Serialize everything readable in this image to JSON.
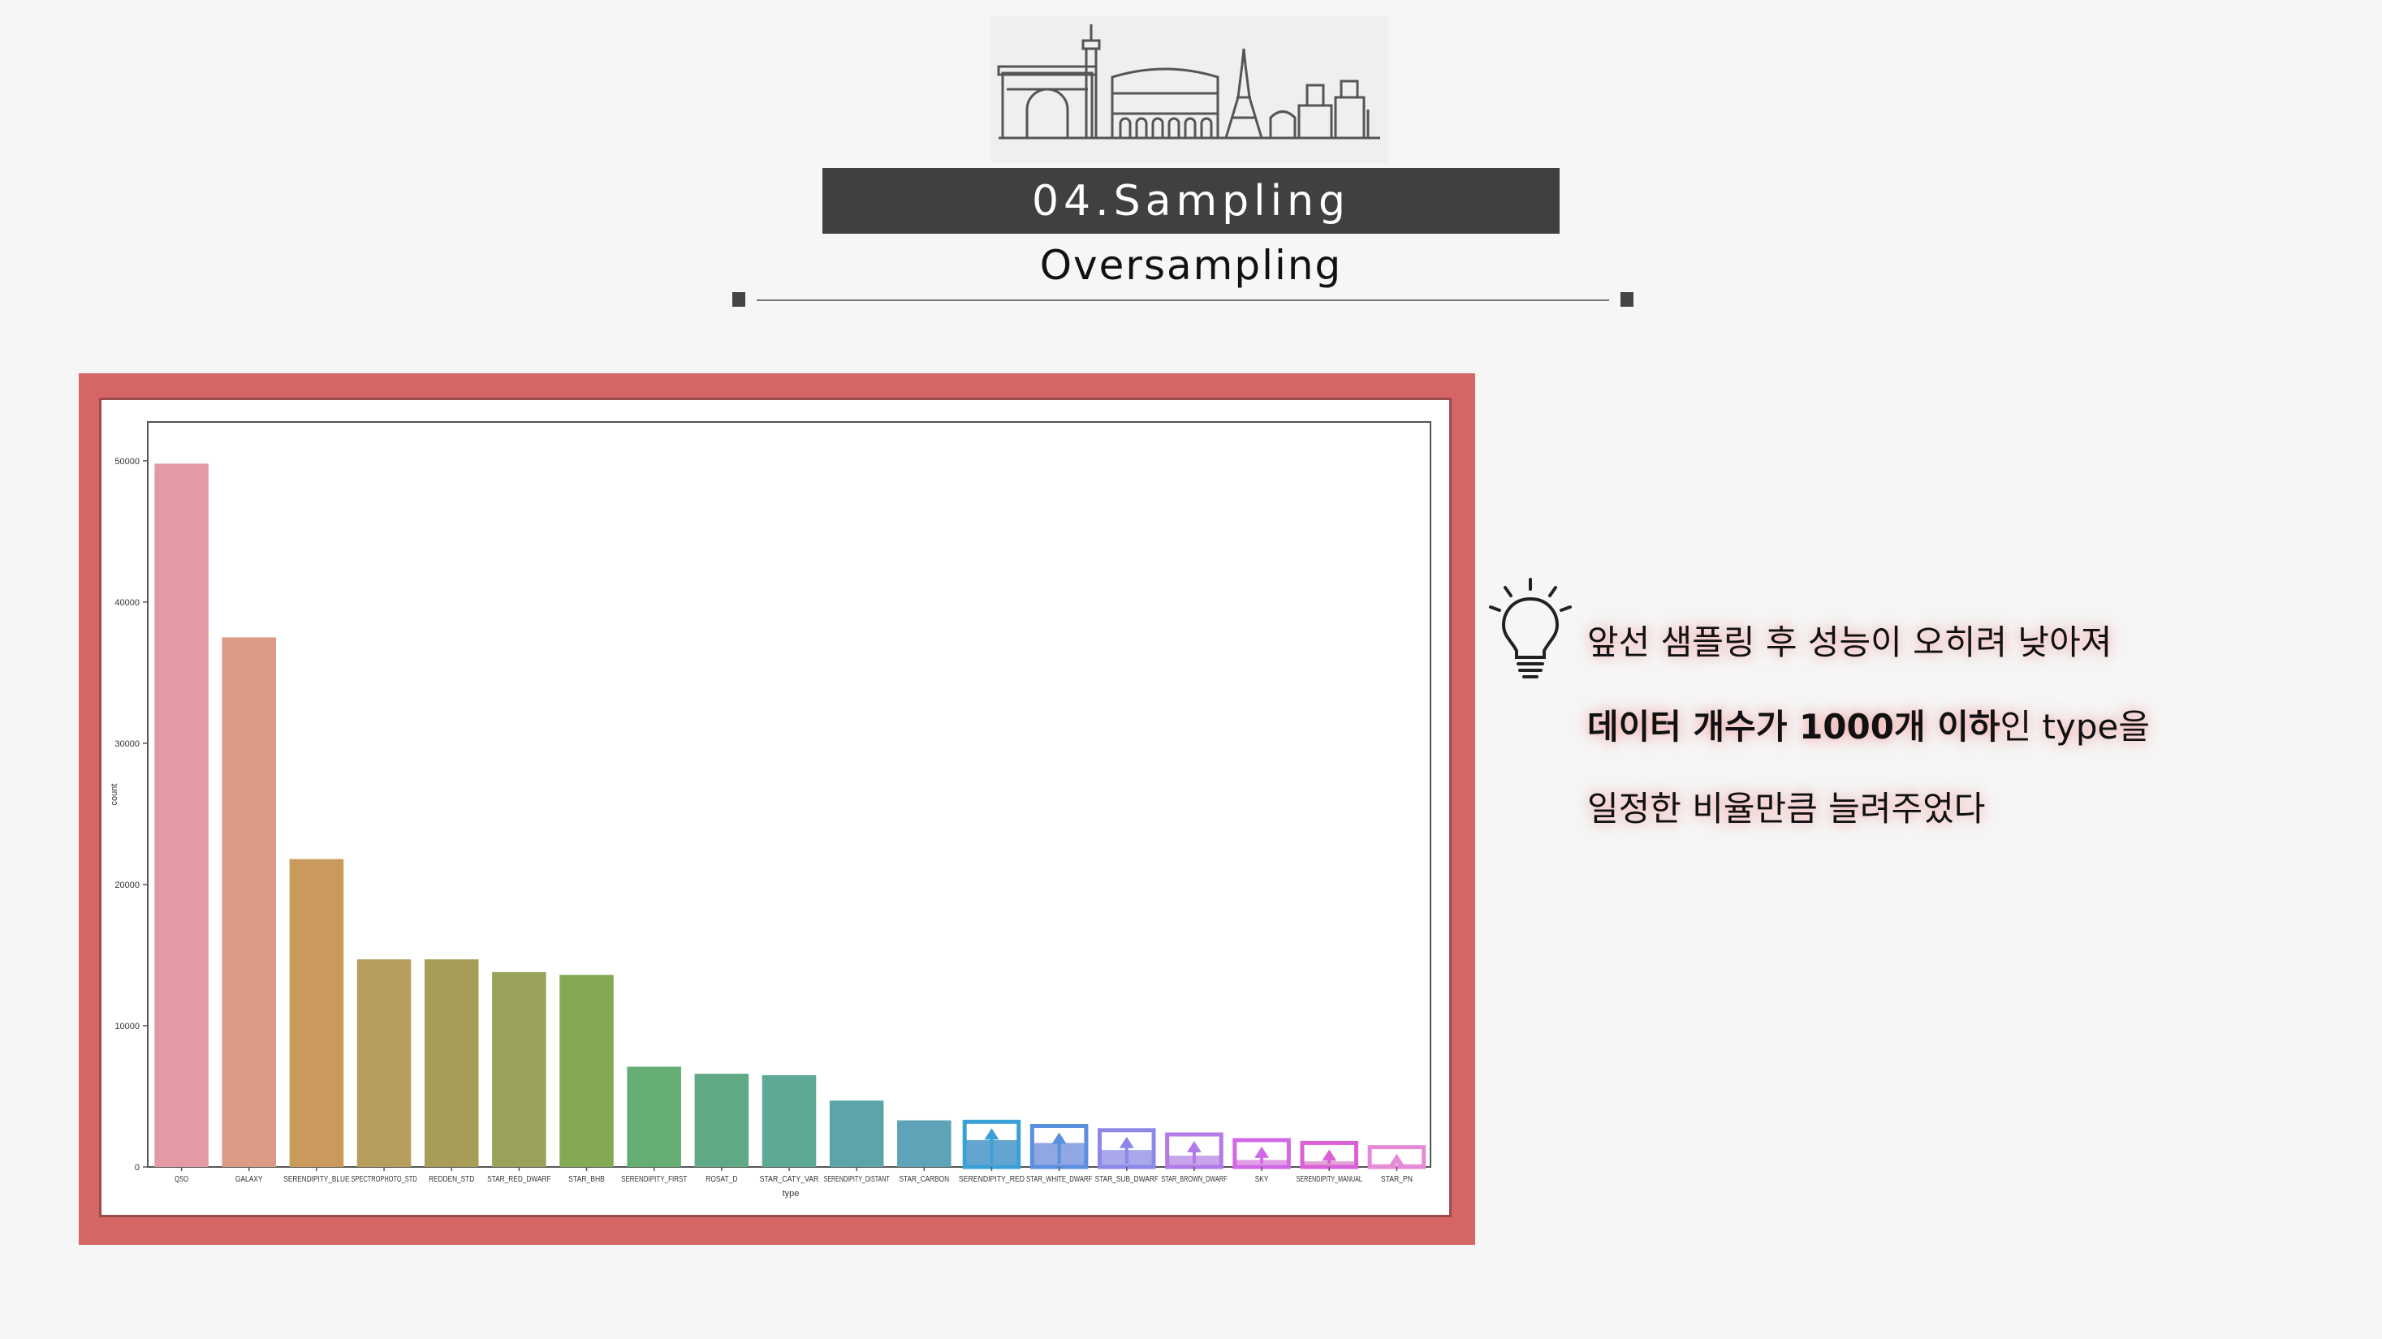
{
  "section": {
    "title": "04.Sampling",
    "subtitle": "Oversampling"
  },
  "note": {
    "line1": "앞선 샘플링 후 성능이 오히려 낮아져",
    "line2_bold": "데이터 개수가 1000개 이하",
    "line2_rest": "인 type을",
    "line3": "일정한 비율만큼 늘려주었다"
  },
  "icons": {
    "skyline": "city-skyline-illustration",
    "idea": "lightbulb-icon"
  },
  "colors": {
    "frame": "#d66665",
    "section_bar": "#404040",
    "annotation": "#3aa0d8"
  },
  "chart_data": {
    "type": "bar",
    "xlabel": "type",
    "ylabel": "count",
    "ylim": [
      0,
      50000
    ],
    "yticks": [
      0,
      10000,
      20000,
      30000,
      40000,
      50000
    ],
    "grid": false,
    "categories": [
      "QSO",
      "GALAXY",
      "SERENDIPITY_BLUE",
      "SPECTROPHOTO_STD",
      "REDDEN_STD",
      "STAR_RED_DWARF",
      "STAR_BHB",
      "SERENDIPITY_FIRST",
      "ROSAT_D",
      "STAR_CATY_VAR",
      "SERENDIPITY_DISTANT",
      "STAR_CARBON",
      "SERENDIPITY_RED",
      "STAR_WHITE_DWARF",
      "STAR_SUB_DWARF",
      "STAR_BROWN_DWARF",
      "SKY",
      "SERENDIPITY_MANUAL",
      "STAR_PN"
    ],
    "values": [
      49800,
      37500,
      21800,
      14700,
      14700,
      13800,
      13600,
      7100,
      6600,
      6500,
      4700,
      3300,
      1900,
      1700,
      1200,
      800,
      500,
      400,
      200
    ],
    "oversampled_values": [
      null,
      null,
      null,
      null,
      null,
      null,
      null,
      null,
      null,
      null,
      null,
      null,
      3200,
      2900,
      2600,
      2300,
      1900,
      1700,
      1400
    ],
    "bar_colors": [
      "#e39aa4",
      "#db9a86",
      "#c99a5c",
      "#b79e5c",
      "#a89d57",
      "#9aa25a",
      "#84a952",
      "#64ad73",
      "#5faa85",
      "#5ea995",
      "#5ba5a8",
      "#5ea4b8",
      "#63a5cf",
      "#8fa8e3",
      "#a8a8ea",
      "#c8a4ea",
      "#e0a0e6",
      "#e4a2d6",
      "#eab0d8"
    ],
    "outline_colors": [
      null,
      null,
      null,
      null,
      null,
      null,
      null,
      null,
      null,
      null,
      null,
      null,
      "#3aa0d8",
      "#5b8fe0",
      "#8c88e8",
      "#b27ae6",
      "#d268e6",
      "#d960d6",
      "#e48ad6"
    ]
  }
}
